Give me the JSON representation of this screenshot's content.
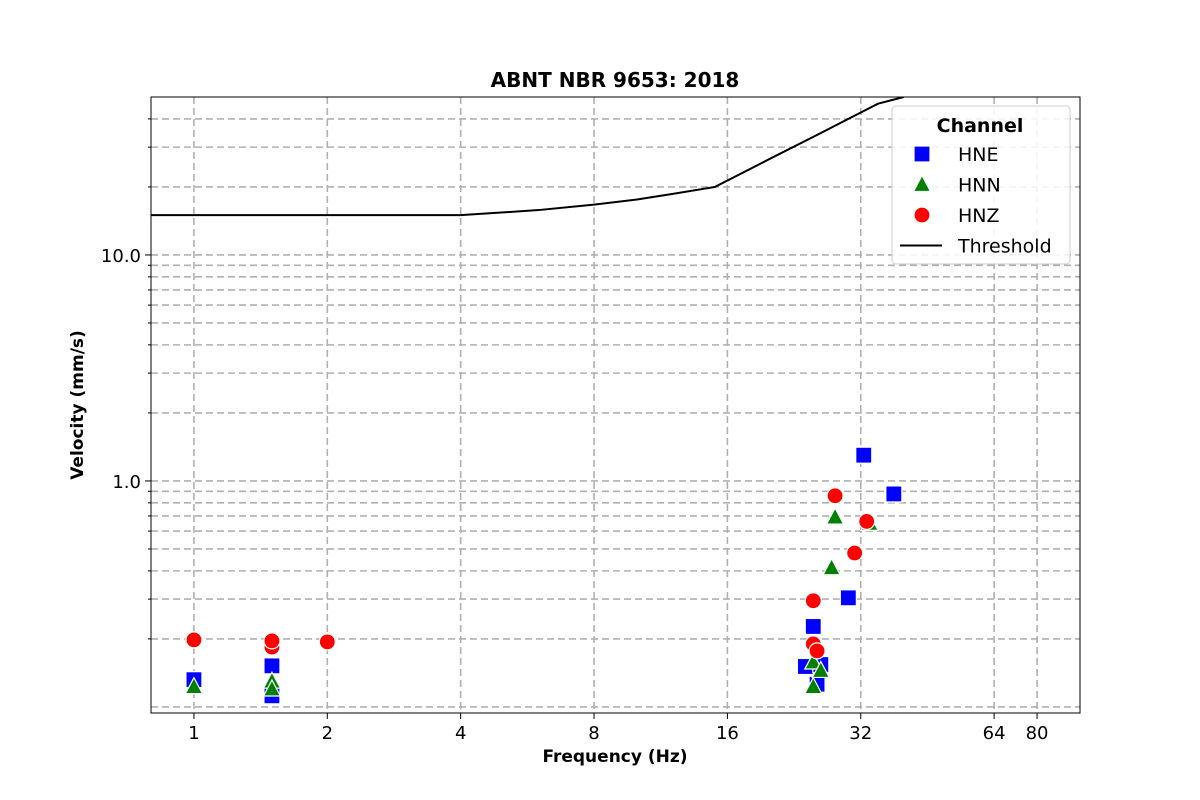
{
  "chart_data": {
    "type": "scatter",
    "title": "ABNT NBR 9653: 2018",
    "xlabel": "Frequency (Hz)",
    "ylabel": "Velocity (mm/s)",
    "x_scale": "log2",
    "y_scale": "log10",
    "xlim": [
      0.8,
      100
    ],
    "ylim": [
      0.094,
      50
    ],
    "x_ticks": [
      1,
      2,
      4,
      8,
      16,
      32,
      64,
      80
    ],
    "x_tick_labels": [
      "1",
      "2",
      "4",
      "8",
      "16",
      "32",
      "64",
      "80"
    ],
    "y_ticks": [
      1.0,
      10.0
    ],
    "y_tick_labels": [
      "1.0",
      "10.0"
    ],
    "grid": true,
    "legend": {
      "title": "Channel",
      "placement": "top-right"
    },
    "series": [
      {
        "name": "HNE",
        "marker": "square",
        "color": "#0000ff",
        "points": [
          {
            "x": 1.0,
            "y": 0.132
          },
          {
            "x": 1.5,
            "y": 0.152
          },
          {
            "x": 1.5,
            "y": 0.112
          },
          {
            "x": 24.0,
            "y": 0.151
          },
          {
            "x": 25.0,
            "y": 0.227
          },
          {
            "x": 25.5,
            "y": 0.126
          },
          {
            "x": 26.0,
            "y": 0.154
          },
          {
            "x": 30.0,
            "y": 0.304
          },
          {
            "x": 32.5,
            "y": 1.3
          },
          {
            "x": 38.0,
            "y": 0.876
          }
        ]
      },
      {
        "name": "HNN",
        "marker": "triangle",
        "color": "#008000",
        "points": [
          {
            "x": 1.0,
            "y": 0.123
          },
          {
            "x": 1.5,
            "y": 0.13
          },
          {
            "x": 1.5,
            "y": 0.12
          },
          {
            "x": 25.0,
            "y": 0.158
          },
          {
            "x": 25.0,
            "y": 0.123
          },
          {
            "x": 26.0,
            "y": 0.145
          },
          {
            "x": 27.5,
            "y": 0.413
          },
          {
            "x": 28.0,
            "y": 0.692
          },
          {
            "x": 33.5,
            "y": 0.649
          }
        ]
      },
      {
        "name": "HNZ",
        "marker": "circle",
        "color": "#ff0000",
        "points": [
          {
            "x": 1.0,
            "y": 0.198
          },
          {
            "x": 1.5,
            "y": 0.184
          },
          {
            "x": 1.5,
            "y": 0.196
          },
          {
            "x": 2.0,
            "y": 0.194
          },
          {
            "x": 25.0,
            "y": 0.19
          },
          {
            "x": 25.0,
            "y": 0.295
          },
          {
            "x": 25.5,
            "y": 0.177
          },
          {
            "x": 28.0,
            "y": 0.86
          },
          {
            "x": 31.0,
            "y": 0.48
          },
          {
            "x": 33.0,
            "y": 0.662
          }
        ]
      },
      {
        "name": "Threshold",
        "marker": "line",
        "color": "#000000",
        "points": [
          {
            "x": 0.8,
            "y": 15
          },
          {
            "x": 4,
            "y": 15
          },
          {
            "x": 6,
            "y": 15.8
          },
          {
            "x": 8,
            "y": 16.7
          },
          {
            "x": 10,
            "y": 17.6
          },
          {
            "x": 12,
            "y": 18.6
          },
          {
            "x": 15,
            "y": 20
          },
          {
            "x": 20,
            "y": 26.7
          },
          {
            "x": 25,
            "y": 33.3
          },
          {
            "x": 30,
            "y": 40
          },
          {
            "x": 35,
            "y": 46.7
          },
          {
            "x": 40,
            "y": 50
          }
        ]
      }
    ]
  }
}
